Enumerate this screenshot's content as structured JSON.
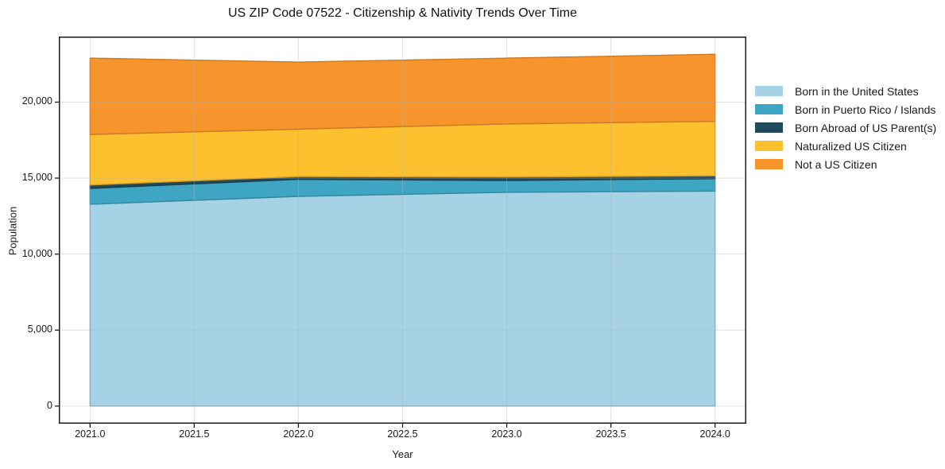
{
  "title": "US ZIP Code 07522 - Citizenship & Nativity Trends Over Time",
  "chart_data": {
    "type": "area",
    "stacked": true,
    "title": "US ZIP Code 07522 - Citizenship & Nativity Trends Over Time",
    "xlabel": "Year",
    "ylabel": "Population",
    "x": [
      2021,
      2022,
      2023,
      2024
    ],
    "series": [
      {
        "name": "Born in the United States",
        "color": "#A5D2E4",
        "values": [
          13280,
          13800,
          14065,
          14145
        ]
      },
      {
        "name": "Born in Puerto Rico / Islands",
        "color": "#3EA5C2",
        "values": [
          1040,
          1120,
          780,
          815
        ]
      },
      {
        "name": "Born Abroad of US Parent(s)",
        "color": "#1F4A5C",
        "values": [
          225,
          180,
          225,
          190
        ]
      },
      {
        "name": "Naturalized US Citizen",
        "color": "#FDC02E",
        "values": [
          3325,
          3120,
          3495,
          3585
        ]
      },
      {
        "name": "Not a US Citizen",
        "color": "#F7942B",
        "values": [
          5025,
          4415,
          4330,
          4415
        ]
      }
    ],
    "totals": [
      22895,
      22635,
      22895,
      23150
    ],
    "xlim": [
      2020.85,
      2024.15
    ],
    "ylim": [
      -1158,
      24313
    ],
    "xticks": {
      "values": [
        2021.0,
        2021.5,
        2022.0,
        2022.5,
        2023.0,
        2023.5,
        2024.0
      ],
      "labels": [
        "2021.0",
        "2021.5",
        "2022.0",
        "2022.5",
        "2023.0",
        "2023.5",
        "2024.0"
      ]
    },
    "yticks": {
      "values": [
        0,
        5000,
        10000,
        15000,
        20000
      ],
      "labels": [
        "0",
        "5,000",
        "10,000",
        "15,000",
        "20,000"
      ]
    },
    "grid": true,
    "grid_on_top": true,
    "legend_position": "center right outside",
    "frame_color": "#1a1a1a",
    "grid_color": "#b4b4b4"
  }
}
